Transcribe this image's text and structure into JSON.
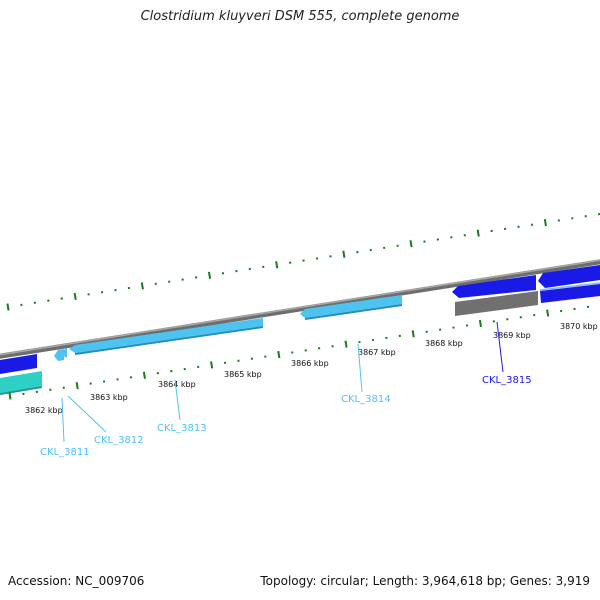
{
  "title": "Clostridium kluyveri DSM 555, complete genome",
  "footer": {
    "accession": "Accession: NC_009706",
    "summary": "Topology: circular; Length: 3,964,618 bp; Genes: 3,919"
  },
  "colors": {
    "backbone": "#8a8a8a",
    "tick": "#1b7a1b",
    "gene_light": "#4fc3f0",
    "gene_blue": "#1a1ae6",
    "gene_teal": "#2ecfc4",
    "gene_gray": "#707070"
  },
  "scale_labels": [
    "3862 kbp",
    "3863 kbp",
    "3864 kbp",
    "3865 kbp",
    "3866 kbp",
    "3867 kbp",
    "3868 kbp",
    "3869 kbp",
    "3870 kbp"
  ],
  "genes": [
    {
      "id": "CKL_3811",
      "color": "#4fc3f0"
    },
    {
      "id": "CKL_3812",
      "color": "#4fc3f0"
    },
    {
      "id": "CKL_3813",
      "color": "#4fc3f0"
    },
    {
      "id": "CKL_3814",
      "color": "#4fc3f0"
    },
    {
      "id": "CKL_3815",
      "color": "#1a1ae6"
    }
  ]
}
